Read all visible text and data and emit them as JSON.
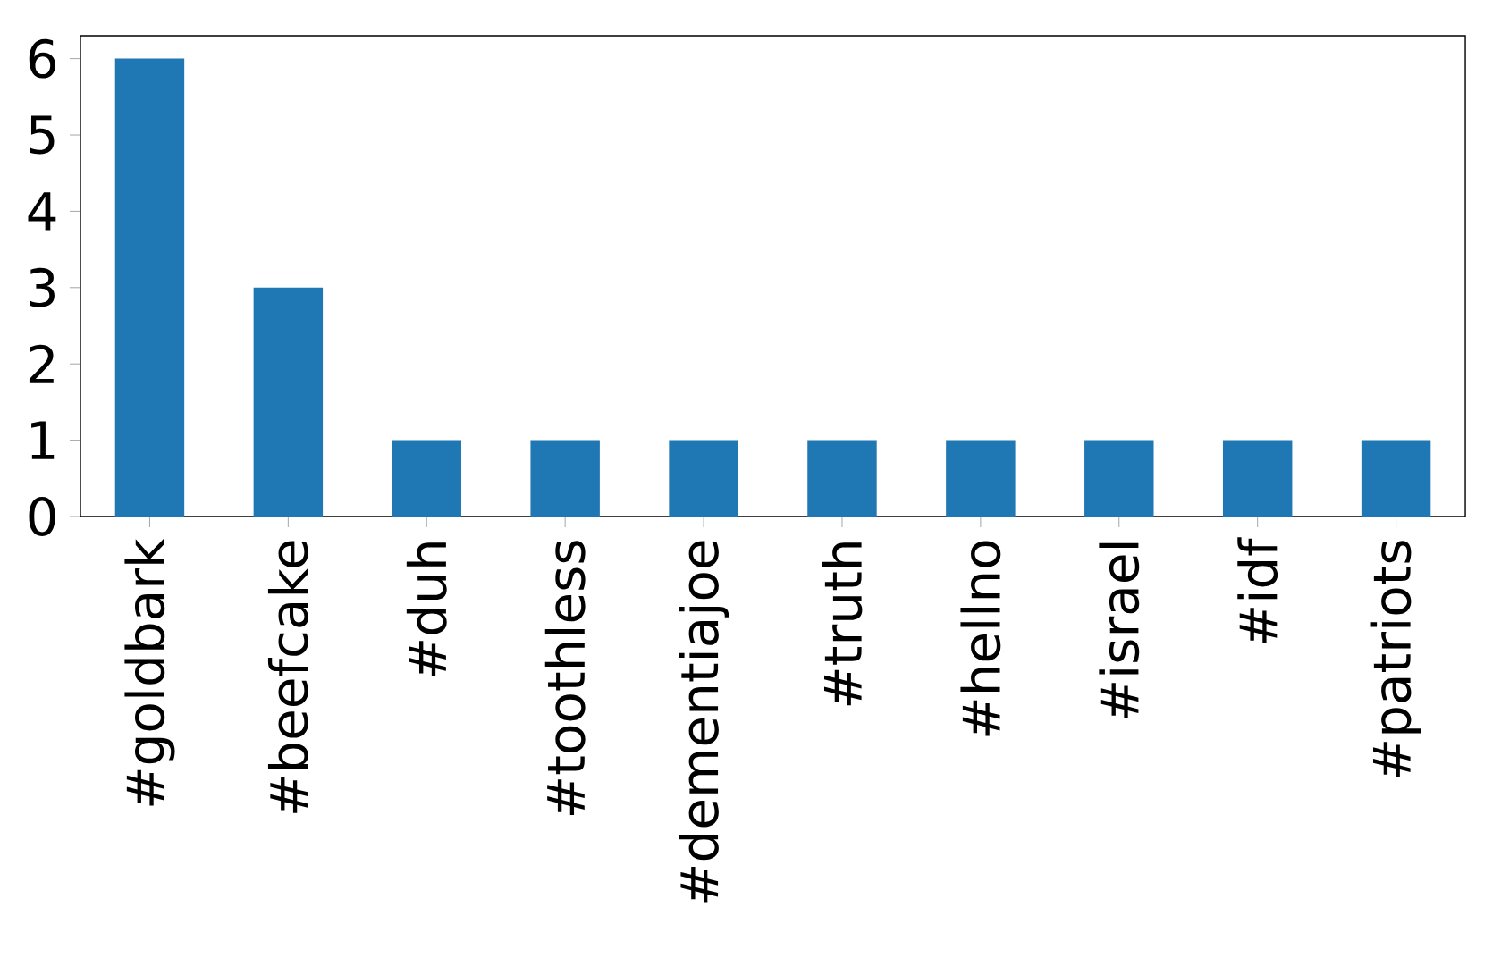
{
  "chart_data": {
    "type": "bar",
    "categories": [
      "#goldbark",
      "#beefcake",
      "#duh",
      "#toothless",
      "#dementiajoe",
      "#truth",
      "#hellno",
      "#israel",
      "#idf",
      "#patriots"
    ],
    "values": [
      6,
      3,
      1,
      1,
      1,
      1,
      1,
      1,
      1,
      1
    ],
    "color": "#1f77b4",
    "ylim": [
      0,
      6.3
    ],
    "yticks": [
      0,
      1,
      2,
      3,
      4,
      5,
      6
    ],
    "grid": false
  }
}
